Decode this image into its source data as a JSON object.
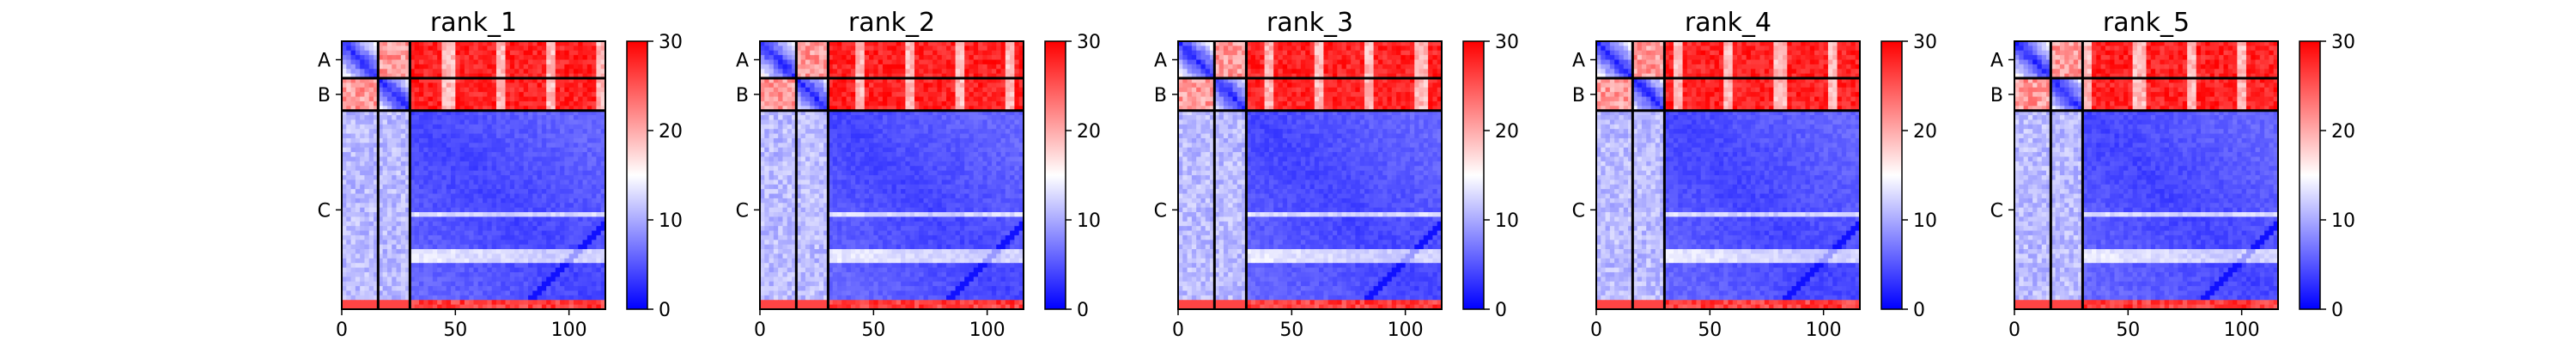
{
  "figure": {
    "domain": "Chart"
  },
  "chart_data": [
    {
      "type": "heatmap",
      "title": "rank_1",
      "xticks": [
        0,
        50,
        100
      ],
      "xlim": [
        0,
        116
      ],
      "chains": [
        {
          "label": "A",
          "start": 0,
          "end": 16
        },
        {
          "label": "B",
          "start": 16,
          "end": 30
        },
        {
          "label": "C",
          "start": 30,
          "end": 116
        }
      ],
      "colorbar": {
        "min": 0,
        "max": 30,
        "ticks": [
          0,
          10,
          20,
          30
        ],
        "colors": [
          "#0000ff",
          "#ffffff",
          "#ff0000"
        ]
      }
    },
    {
      "type": "heatmap",
      "title": "rank_2",
      "xticks": [
        0,
        50,
        100
      ],
      "xlim": [
        0,
        116
      ],
      "chains": [
        {
          "label": "A",
          "start": 0,
          "end": 16
        },
        {
          "label": "B",
          "start": 16,
          "end": 30
        },
        {
          "label": "C",
          "start": 30,
          "end": 116
        }
      ],
      "colorbar": {
        "min": 0,
        "max": 30,
        "ticks": [
          0,
          10,
          20,
          30
        ],
        "colors": [
          "#0000ff",
          "#ffffff",
          "#ff0000"
        ]
      }
    },
    {
      "type": "heatmap",
      "title": "rank_3",
      "xticks": [
        0,
        50,
        100
      ],
      "xlim": [
        0,
        116
      ],
      "chains": [
        {
          "label": "A",
          "start": 0,
          "end": 16
        },
        {
          "label": "B",
          "start": 16,
          "end": 30
        },
        {
          "label": "C",
          "start": 30,
          "end": 116
        }
      ],
      "colorbar": {
        "min": 0,
        "max": 30,
        "ticks": [
          0,
          10,
          20,
          30
        ],
        "colors": [
          "#0000ff",
          "#ffffff",
          "#ff0000"
        ]
      }
    },
    {
      "type": "heatmap",
      "title": "rank_4",
      "xticks": [
        0,
        50,
        100
      ],
      "xlim": [
        0,
        116
      ],
      "chains": [
        {
          "label": "A",
          "start": 0,
          "end": 16
        },
        {
          "label": "B",
          "start": 16,
          "end": 30
        },
        {
          "label": "C",
          "start": 30,
          "end": 116
        }
      ],
      "colorbar": {
        "min": 0,
        "max": 30,
        "ticks": [
          0,
          10,
          20,
          30
        ],
        "colors": [
          "#0000ff",
          "#ffffff",
          "#ff0000"
        ]
      }
    },
    {
      "type": "heatmap",
      "title": "rank_5",
      "xticks": [
        0,
        50,
        100
      ],
      "xlim": [
        0,
        116
      ],
      "chains": [
        {
          "label": "A",
          "start": 0,
          "end": 16
        },
        {
          "label": "B",
          "start": 16,
          "end": 30
        },
        {
          "label": "C",
          "start": 30,
          "end": 116
        }
      ],
      "colorbar": {
        "min": 0,
        "max": 30,
        "ticks": [
          0,
          10,
          20,
          30
        ],
        "colors": [
          "#0000ff",
          "#ffffff",
          "#ff0000"
        ]
      }
    }
  ]
}
